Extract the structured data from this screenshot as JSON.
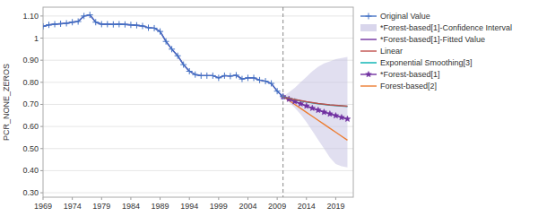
{
  "chart_data": {
    "type": "line",
    "ylabel": "PCR_NONE_ZEROS",
    "xlim": [
      1969,
      2022
    ],
    "ylim": [
      0.28,
      1.14
    ],
    "xticks": [
      1969,
      1974,
      1979,
      1984,
      1989,
      1994,
      1999,
      2004,
      2009,
      2014,
      2019
    ],
    "yticks": [
      {
        "value": 0.3,
        "label": "0.30"
      },
      {
        "value": 0.4,
        "label": "0.40"
      },
      {
        "value": 0.5,
        "label": "0.50"
      },
      {
        "value": 0.6,
        "label": "0.60"
      },
      {
        "value": 0.7,
        "label": "0.70"
      },
      {
        "value": 0.8,
        "label": "0.80"
      },
      {
        "value": 0.9,
        "label": "0.90"
      },
      1,
      {
        "value": 1.1,
        "label": "1.10"
      }
    ],
    "grid": "y",
    "legend": "right",
    "vline": 2010,
    "series": [
      {
        "name": "Original Value",
        "color": "#4472c4",
        "marker": "plus",
        "x": [
          1969,
          1970,
          1971,
          1972,
          1973,
          1974,
          1975,
          1976,
          1977,
          1978,
          1979,
          1980,
          1981,
          1982,
          1983,
          1984,
          1985,
          1986,
          1987,
          1988,
          1989,
          1990,
          1991,
          1992,
          1993,
          1994,
          1995,
          1996,
          1997,
          1998,
          1999,
          2000,
          2001,
          2002,
          2003,
          2004,
          2005,
          2006,
          2007,
          2008,
          2009,
          2010
        ],
        "values": [
          1.053,
          1.06,
          1.063,
          1.065,
          1.067,
          1.072,
          1.075,
          1.1,
          1.105,
          1.072,
          1.063,
          1.063,
          1.062,
          1.063,
          1.062,
          1.06,
          1.058,
          1.055,
          1.047,
          1.045,
          1.03,
          0.985,
          0.95,
          0.92,
          0.88,
          0.85,
          0.835,
          0.83,
          0.83,
          0.83,
          0.82,
          0.83,
          0.828,
          0.832,
          0.815,
          0.82,
          0.82,
          0.81,
          0.805,
          0.795,
          0.76,
          0.735
        ]
      },
      {
        "name": "*Forest-based[1]-Confidence Interval",
        "type": "band",
        "color": "#c9c4e4",
        "x": [
          2010,
          2011,
          2012,
          2013,
          2014,
          2015,
          2016,
          2017,
          2018,
          2019,
          2020,
          2021
        ],
        "lower": [
          0.735,
          0.71,
          0.685,
          0.655,
          0.62,
          0.58,
          0.54,
          0.5,
          0.46,
          0.43,
          0.42,
          0.415
        ],
        "upper": [
          0.735,
          0.755,
          0.775,
          0.8,
          0.825,
          0.85,
          0.87,
          0.885,
          0.895,
          0.905,
          0.91,
          0.915
        ]
      },
      {
        "name": "*Forest-based[1]-Fitted Value",
        "color": "#7030a0",
        "x": [
          1969,
          1970,
          1971,
          1972,
          1973,
          1974,
          1975,
          1976,
          1977,
          1978,
          1979,
          1980,
          1981,
          1982,
          1983,
          1984,
          1985,
          1986,
          1987,
          1988,
          1989,
          1990,
          1991,
          1992,
          1993,
          1994,
          1995,
          1996,
          1997,
          1998,
          1999,
          2000,
          2001,
          2002,
          2003,
          2004,
          2005,
          2006,
          2007,
          2008,
          2009,
          2010
        ],
        "values": [
          1.053,
          1.06,
          1.063,
          1.065,
          1.067,
          1.072,
          1.075,
          1.1,
          1.105,
          1.072,
          1.063,
          1.063,
          1.062,
          1.063,
          1.062,
          1.06,
          1.058,
          1.055,
          1.047,
          1.045,
          1.03,
          0.985,
          0.95,
          0.92,
          0.88,
          0.85,
          0.835,
          0.83,
          0.83,
          0.83,
          0.82,
          0.83,
          0.828,
          0.832,
          0.815,
          0.82,
          0.82,
          0.81,
          0.805,
          0.795,
          0.76,
          0.735
        ]
      },
      {
        "name": "Linear",
        "color": "#c0504d",
        "x": [
          2010,
          2011,
          2012,
          2013,
          2014,
          2015,
          2016,
          2017,
          2018,
          2019,
          2020,
          2021
        ],
        "values": [
          0.735,
          0.728,
          0.722,
          0.717,
          0.712,
          0.708,
          0.704,
          0.701,
          0.698,
          0.696,
          0.694,
          0.692
        ]
      },
      {
        "name": "Exponential Smoothing[3]",
        "color": "#00b0b0",
        "x": [
          2010,
          2011,
          2012,
          2013,
          2014,
          2015,
          2016,
          2017,
          2018,
          2019,
          2020,
          2021
        ],
        "values": [
          0.735,
          0.728,
          0.722,
          0.716,
          0.711,
          0.707,
          0.703,
          0.7,
          0.697,
          0.695,
          0.693,
          0.691
        ]
      },
      {
        "name": "*Forest-based[1]",
        "color": "#7030a0",
        "marker": "star",
        "x": [
          2010,
          2011,
          2012,
          2013,
          2014,
          2015,
          2016,
          2017,
          2018,
          2019,
          2020,
          2021
        ],
        "values": [
          0.735,
          0.724,
          0.713,
          0.703,
          0.693,
          0.683,
          0.674,
          0.665,
          0.657,
          0.649,
          0.641,
          0.634
        ]
      },
      {
        "name": "Forest-based[2]",
        "color": "#ed7d31",
        "x": [
          2010,
          2011,
          2012,
          2013,
          2014,
          2015,
          2016,
          2017,
          2018,
          2019,
          2020,
          2021
        ],
        "values": [
          0.735,
          0.718,
          0.7,
          0.682,
          0.664,
          0.646,
          0.628,
          0.61,
          0.592,
          0.574,
          0.556,
          0.538
        ]
      }
    ]
  }
}
